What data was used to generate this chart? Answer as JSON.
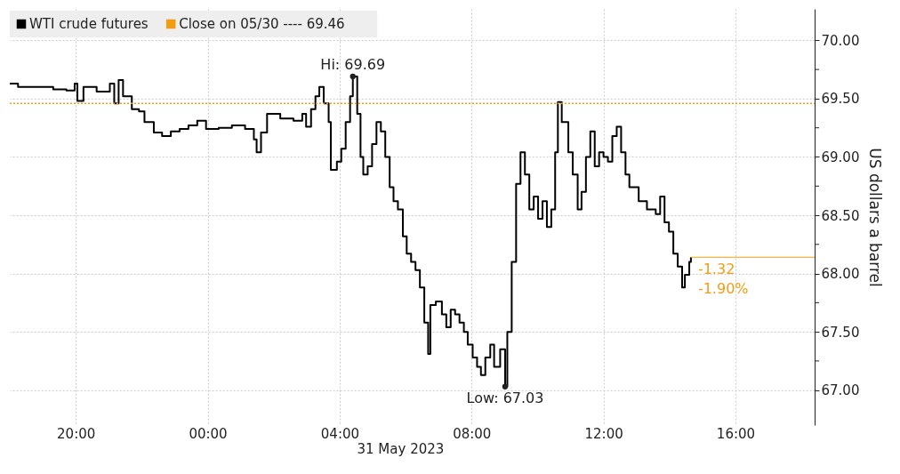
{
  "chart_data": {
    "type": "step",
    "xlabel": "31 May 2023",
    "ylabel": "US dollars a barrel",
    "series": [
      {
        "name": "WTI crude futures",
        "color": "#000000",
        "x": [
          "2023-05-30T18:00",
          "2023-05-30T18:15",
          "2023-05-30T18:47",
          "2023-05-30T19:19",
          "2023-05-30T19:43",
          "2023-05-30T19:58",
          "2023-05-30T20:03",
          "2023-05-30T20:14",
          "2023-05-30T20:38",
          "2023-05-30T21:02",
          "2023-05-30T21:10",
          "2023-05-30T21:18",
          "2023-05-30T21:26",
          "2023-05-30T21:42",
          "2023-05-30T21:55",
          "2023-05-30T22:05",
          "2023-05-30T22:22",
          "2023-05-30T22:37",
          "2023-05-30T22:53",
          "2023-05-30T23:09",
          "2023-05-30T23:25",
          "2023-05-30T23:41",
          "2023-05-30T23:57",
          "2023-05-31T00:20",
          "2023-05-31T00:44",
          "2023-05-31T01:08",
          "2023-05-31T01:24",
          "2023-05-31T01:29",
          "2023-05-31T01:37",
          "2023-05-31T01:48",
          "2023-05-31T02:12",
          "2023-05-31T02:36",
          "2023-05-31T02:52",
          "2023-05-31T02:59",
          "2023-05-31T03:08",
          "2023-05-31T03:16",
          "2023-05-31T03:23",
          "2023-05-31T03:31",
          "2023-05-31T03:40",
          "2023-05-31T03:44",
          "2023-05-31T03:55",
          "2023-05-31T04:03",
          "2023-05-31T04:11",
          "2023-05-31T04:19",
          "2023-05-31T04:24",
          "2023-05-31T04:32",
          "2023-05-31T04:38",
          "2023-05-31T04:43",
          "2023-05-31T04:51",
          "2023-05-31T04:59",
          "2023-05-31T05:07",
          "2023-05-31T05:15",
          "2023-05-31T05:23",
          "2023-05-31T05:31",
          "2023-05-31T05:38",
          "2023-05-31T05:46",
          "2023-05-31T05:55",
          "2023-05-31T06:02",
          "2023-05-31T06:10",
          "2023-05-31T06:18",
          "2023-05-31T06:26",
          "2023-05-31T06:34",
          "2023-05-31T06:41",
          "2023-05-31T06:45",
          "2023-05-31T06:55",
          "2023-05-31T07:06",
          "2023-05-31T07:14",
          "2023-05-31T07:22",
          "2023-05-31T07:30",
          "2023-05-31T07:38",
          "2023-05-31T07:46",
          "2023-05-31T07:53",
          "2023-05-31T08:02",
          "2023-05-31T08:10",
          "2023-05-31T08:17",
          "2023-05-31T08:25",
          "2023-05-31T08:34",
          "2023-05-31T08:41",
          "2023-05-31T08:52",
          "2023-05-31T09:01",
          "2023-05-31T09:05",
          "2023-05-31T09:13",
          "2023-05-31T09:21",
          "2023-05-31T09:29",
          "2023-05-31T09:37",
          "2023-05-31T09:45",
          "2023-05-31T09:53",
          "2023-05-31T10:01",
          "2023-05-31T10:09",
          "2023-05-31T10:17",
          "2023-05-31T10:25",
          "2023-05-31T10:32",
          "2023-05-31T10:37",
          "2023-05-31T10:44",
          "2023-05-31T10:56",
          "2023-05-31T11:04",
          "2023-05-31T11:13",
          "2023-05-31T11:20",
          "2023-05-31T11:28",
          "2023-05-31T11:36",
          "2023-05-31T11:44",
          "2023-05-31T11:52",
          "2023-05-31T12:00",
          "2023-05-31T12:08",
          "2023-05-31T12:16",
          "2023-05-31T12:24",
          "2023-05-31T12:32",
          "2023-05-31T12:40",
          "2023-05-31T12:47",
          "2023-05-31T13:04",
          "2023-05-31T13:19",
          "2023-05-31T13:35",
          "2023-05-31T13:43",
          "2023-05-31T13:51",
          "2023-05-31T13:59",
          "2023-05-31T14:07",
          "2023-05-31T14:15",
          "2023-05-31T14:23",
          "2023-05-31T14:28",
          "2023-05-31T14:36",
          "2023-05-31T14:39"
        ],
        "values": [
          69.63,
          69.6,
          69.6,
          69.58,
          69.57,
          69.63,
          69.48,
          69.6,
          69.56,
          69.63,
          69.46,
          69.66,
          69.52,
          69.41,
          69.39,
          69.3,
          69.21,
          69.18,
          69.22,
          69.24,
          69.27,
          69.31,
          69.24,
          69.25,
          69.27,
          69.24,
          69.15,
          69.04,
          69.21,
          69.37,
          69.33,
          69.31,
          69.37,
          69.26,
          69.41,
          69.52,
          69.6,
          69.46,
          69.3,
          68.89,
          68.96,
          69.07,
          69.3,
          69.52,
          69.69,
          69.37,
          69.0,
          68.85,
          68.92,
          69.11,
          69.3,
          69.22,
          69.0,
          68.74,
          68.62,
          68.55,
          68.32,
          68.17,
          68.1,
          68.03,
          67.88,
          67.58,
          67.31,
          67.73,
          67.76,
          67.65,
          67.54,
          67.69,
          67.65,
          67.58,
          67.5,
          67.39,
          67.28,
          67.2,
          67.13,
          67.28,
          67.39,
          67.2,
          67.35,
          67.03,
          67.5,
          68.1,
          68.77,
          69.04,
          68.85,
          68.55,
          68.66,
          68.47,
          68.62,
          68.4,
          68.55,
          69.04,
          69.47,
          69.3,
          69.04,
          68.85,
          68.55,
          68.7,
          69.0,
          69.22,
          68.92,
          69.04,
          69.0,
          68.96,
          69.18,
          69.26,
          69.04,
          68.85,
          68.74,
          68.62,
          68.55,
          68.51,
          68.66,
          68.44,
          68.36,
          68.17,
          68.06,
          67.88,
          67.99,
          68.1,
          68.14
        ]
      }
    ],
    "xlim": [
      "2023-05-30T18:00",
      "2023-05-31T18:24"
    ],
    "ylim": [
      66.7,
      70.27
    ],
    "xticks": [
      {
        "value": "2023-05-30T20:00",
        "label": "20:00"
      },
      {
        "value": "2023-05-31T00:00",
        "label": "00:00"
      },
      {
        "value": "2023-05-31T04:00",
        "label": "04:00"
      },
      {
        "value": "2023-05-31T08:00",
        "label": "08:00"
      },
      {
        "value": "2023-05-31T12:00",
        "label": "12:00"
      },
      {
        "value": "2023-05-31T16:00",
        "label": "16:00"
      }
    ],
    "yticks": [
      {
        "value": 67,
        "label": "67.00"
      },
      {
        "value": 67.25,
        "label": null
      },
      {
        "value": 67.5,
        "label": "67.50"
      },
      {
        "value": 67.75,
        "label": null
      },
      {
        "value": 68,
        "label": "68.00"
      },
      {
        "value": 68.25,
        "label": null
      },
      {
        "value": 68.5,
        "label": "68.50"
      },
      {
        "value": 68.75,
        "label": null
      },
      {
        "value": 69,
        "label": "69.00"
      },
      {
        "value": 69.25,
        "label": null
      },
      {
        "value": 69.5,
        "label": "69.50"
      },
      {
        "value": 69.75,
        "label": null
      },
      {
        "value": 70,
        "label": "70.00"
      }
    ],
    "ref_lines": [
      {
        "axis": "y",
        "value": 69.46,
        "label": "Close on 05/30 ---- 69.46",
        "color": "#f39c12",
        "line_style": "dotted"
      },
      {
        "axis": "y",
        "value": 68.14,
        "color": "#f39c12",
        "line_style": "solid"
      }
    ],
    "annotations": [
      {
        "text": "Hi: 69.69",
        "x": "2023-05-31T04:24",
        "y": 69.69
      },
      {
        "text": "Low: 67.03",
        "x": "2023-05-31T09:01",
        "y": 67.03
      },
      {
        "text": "-1.32",
        "x": "2023-05-31T14:39",
        "y": 68.14
      },
      {
        "text": "-1.90%",
        "x": "2023-05-31T14:39",
        "y": 68.14
      }
    ],
    "grid": true,
    "legend": "top left",
    "line_style": "solid"
  }
}
